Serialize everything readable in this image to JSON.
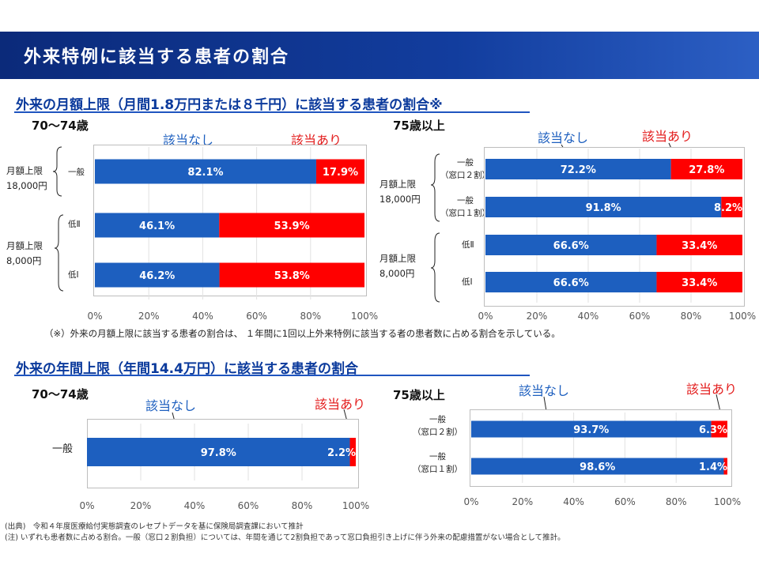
{
  "page": {
    "title": "外来特例に該当する患者の割合"
  },
  "sections": {
    "monthly": {
      "title": "外来の月額上限（月間1.8万円または８千円）に該当する患者の割合※"
    },
    "annual": {
      "title": "外来の年間上限（年間14.4万円）に該当する患者の割合"
    }
  },
  "legend": {
    "none": "該当なし",
    "applicable": "該当あり"
  },
  "groups": {
    "g1": [
      "月額上限",
      "18,000円"
    ],
    "g2": [
      "月額上限",
      "8,000円"
    ]
  },
  "note": "（※）外来の月額上限に該当する患者の割合は、 １年間に1回以上外来特例に該当する者の患者数に占める割合を示している。",
  "footnotes": [
    "(出典)　令和４年度医療給付実態調査のレセプトデータを基に保険局調査課において推計",
    "(注) いずれも患者数に占める割合。一般（窓口２割負担）については、年間を通じて2割負担であって窓口負担引き上げに伴う外来の配慮措置がない場合として推計。"
  ],
  "colors": {
    "blue": "#1d5fbf",
    "red": "#ff0000",
    "banner": "#123d9e"
  },
  "chart_data": [
    {
      "id": "c1",
      "type": "bar",
      "orientation": "horizontal",
      "stacked": true,
      "title": "70〜74歳",
      "categories": [
        "一般",
        "低Ⅱ",
        "低Ⅰ"
      ],
      "series": [
        {
          "name": "該当なし",
          "values": [
            82.1,
            46.1,
            46.2
          ]
        },
        {
          "name": "該当あり",
          "values": [
            17.9,
            53.9,
            53.8
          ]
        }
      ],
      "value_labels": [
        [
          "82.1%",
          "46.1%",
          "46.2%"
        ],
        [
          "17.9%",
          "53.9%",
          "53.8%"
        ]
      ],
      "xlim": [
        0,
        100
      ],
      "xticks": [
        "0%",
        "20%",
        "40%",
        "60%",
        "80%",
        "100%"
      ]
    },
    {
      "id": "c2",
      "type": "bar",
      "orientation": "horizontal",
      "stacked": true,
      "title": "75歳以上",
      "categories": [
        "一般\n（窓口２割）",
        "一般\n（窓口１割）",
        "低Ⅱ",
        "低Ⅰ"
      ],
      "series": [
        {
          "name": "該当なし",
          "values": [
            72.2,
            91.8,
            66.6,
            66.6
          ]
        },
        {
          "name": "該当あり",
          "values": [
            27.8,
            8.2,
            33.4,
            33.4
          ]
        }
      ],
      "value_labels": [
        [
          "72.2%",
          "91.8%",
          "66.6%",
          "66.6%"
        ],
        [
          "27.8%",
          "8.2%",
          "33.4%",
          "33.4%"
        ]
      ],
      "xlim": [
        0,
        100
      ],
      "xticks": [
        "0%",
        "20%",
        "40%",
        "60%",
        "80%",
        "100%"
      ]
    },
    {
      "id": "c3",
      "type": "bar",
      "orientation": "horizontal",
      "stacked": true,
      "title": "70〜74歳",
      "categories": [
        "一般"
      ],
      "series": [
        {
          "name": "該当なし",
          "values": [
            97.8
          ]
        },
        {
          "name": "該当あり",
          "values": [
            2.2
          ]
        }
      ],
      "value_labels": [
        [
          "97.8%"
        ],
        [
          "2.2%"
        ]
      ],
      "xlim": [
        0,
        100
      ],
      "xticks": [
        "0%",
        "20%",
        "40%",
        "60%",
        "80%",
        "100%"
      ]
    },
    {
      "id": "c4",
      "type": "bar",
      "orientation": "horizontal",
      "stacked": true,
      "title": "75歳以上",
      "categories": [
        "一般\n（窓口２割）",
        "一般\n（窓口１割）"
      ],
      "series": [
        {
          "name": "該当なし",
          "values": [
            93.7,
            98.6
          ]
        },
        {
          "name": "該当あり",
          "values": [
            6.3,
            1.4
          ]
        }
      ],
      "value_labels": [
        [
          "93.7%",
          "98.6%"
        ],
        [
          "6.3%",
          "1.4%"
        ]
      ],
      "xlim": [
        0,
        100
      ],
      "xticks": [
        "0%",
        "20%",
        "40%",
        "60%",
        "80%",
        "100%"
      ]
    }
  ]
}
